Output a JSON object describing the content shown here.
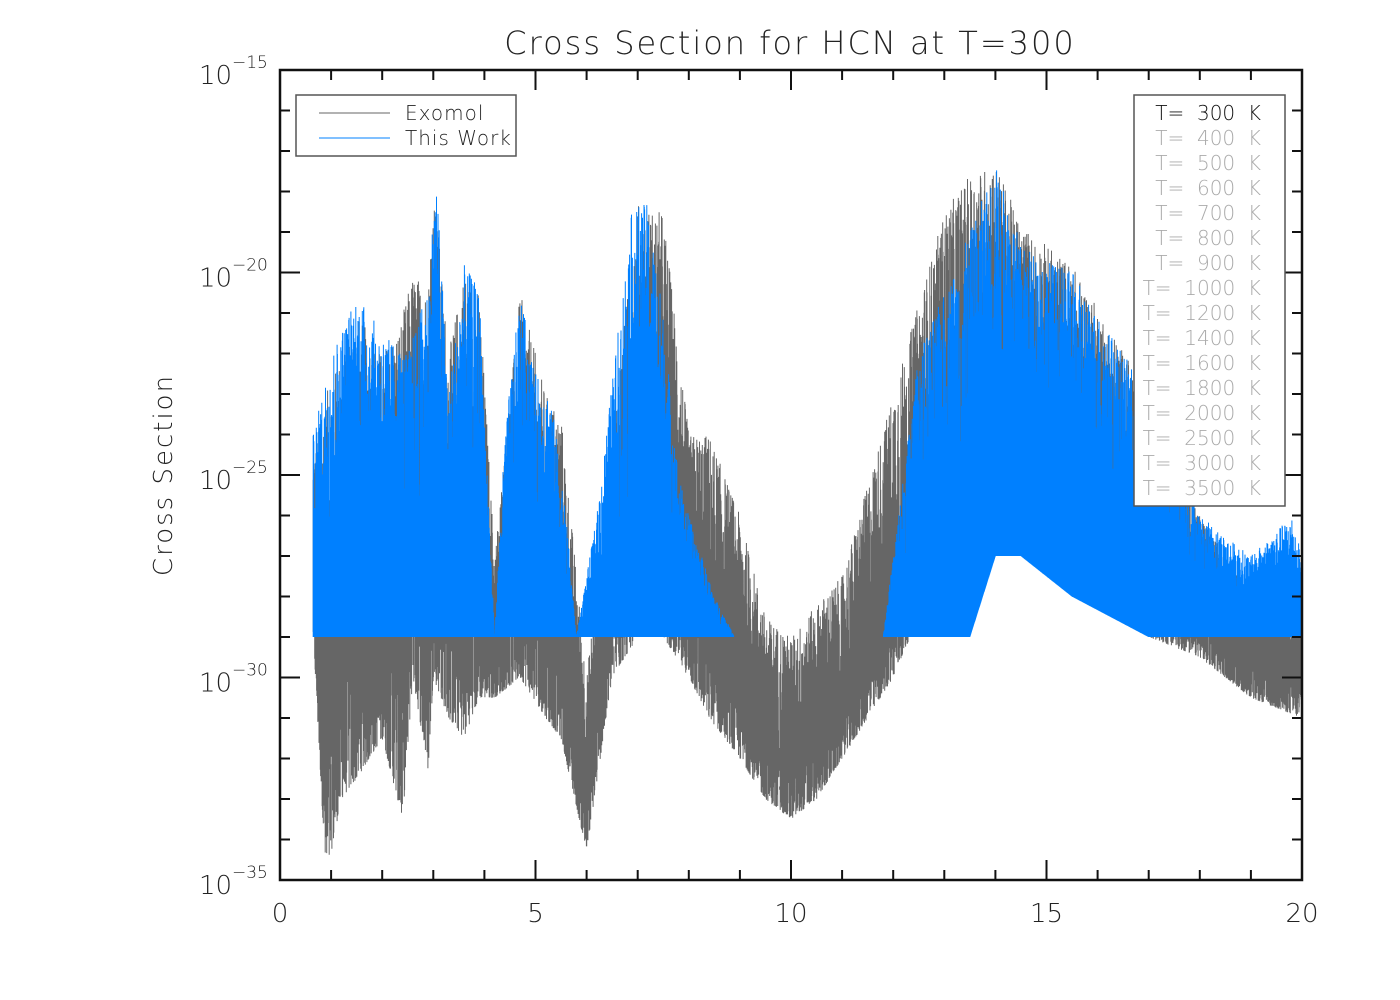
{
  "chart_data": {
    "type": "line",
    "title": "Cross Section for HCN at T=300",
    "xlabel": "",
    "ylabel": "Cross Section",
    "xlim": [
      0,
      20
    ],
    "ylim_log10": [
      -35,
      -15
    ],
    "yscale": "log",
    "xticks": [
      "0",
      "5",
      "10",
      "15",
      "20"
    ],
    "yticks": [
      {
        "base": "10",
        "exp": "−15",
        "value": -15
      },
      {
        "base": "10",
        "exp": "−20",
        "value": -20
      },
      {
        "base": "10",
        "exp": "−25",
        "value": -25
      },
      {
        "base": "10",
        "exp": "−30",
        "value": -30
      },
      {
        "base": "10",
        "exp": "−35",
        "value": -35
      }
    ],
    "legend": {
      "placement": "top-left",
      "entries": [
        "Exomol",
        "This Work"
      ]
    },
    "temperature_legend": {
      "placement": "top-right",
      "active_index": 0,
      "entries": [
        "T=  300  K",
        "T=  400  K",
        "T=  500  K",
        "T=  600  K",
        "T=  700  K",
        "T=  800  K",
        "T=  900  K",
        "T=  1000  K",
        "T=  1200  K",
        "T=  1400  K",
        "T=  1600  K",
        "T=  1800  K",
        "T=  2000  K",
        "T=  2500  K",
        "T=  3000  K",
        "T=  3500  K"
      ]
    },
    "series": [
      {
        "name": "Exomol",
        "color": "#666666",
        "envelope_note": "x, log10 upper, log10 lower",
        "envelope": [
          [
            0.65,
            -24.5,
            -29
          ],
          [
            0.9,
            -23,
            -35
          ],
          [
            1.2,
            -22,
            -33
          ],
          [
            1.5,
            -21,
            -32.5
          ],
          [
            2.0,
            -22,
            -31.5
          ],
          [
            2.4,
            -21,
            -33.5
          ],
          [
            2.6,
            -20,
            -30
          ],
          [
            2.9,
            -20.3,
            -32.3
          ],
          [
            3.0,
            -17.5,
            -30
          ],
          [
            3.3,
            -22,
            -31
          ],
          [
            3.6,
            -19.9,
            -31.5
          ],
          [
            3.9,
            -20.5,
            -30.5
          ],
          [
            4.2,
            -27,
            -30.5
          ],
          [
            4.7,
            -20.5,
            -30
          ],
          [
            5.2,
            -23,
            -31
          ],
          [
            5.5,
            -23.5,
            -31.5
          ],
          [
            6.0,
            -30,
            -34.3
          ],
          [
            6.5,
            -24,
            -30
          ],
          [
            7.0,
            -18.3,
            -29
          ],
          [
            7.5,
            -18.5,
            -29
          ],
          [
            8.0,
            -24,
            -30
          ],
          [
            8.4,
            -24,
            -31
          ],
          [
            9.0,
            -26,
            -32
          ],
          [
            9.5,
            -28.5,
            -33
          ],
          [
            10.0,
            -29,
            -33.5
          ],
          [
            10.5,
            -28.2,
            -33
          ],
          [
            11.0,
            -27.5,
            -32
          ],
          [
            12.0,
            -23,
            -30
          ],
          [
            13.0,
            -18.5,
            -27
          ],
          [
            13.5,
            -17.6,
            -26
          ],
          [
            14.0,
            -17.3,
            -25
          ],
          [
            14.5,
            -18.8,
            -27
          ],
          [
            15.5,
            -19.8,
            -28
          ],
          [
            17.0,
            -23,
            -29
          ],
          [
            18.0,
            -26,
            -29.5
          ],
          [
            19.0,
            -28,
            -30.5
          ],
          [
            20.0,
            -27.5,
            -31
          ]
        ]
      },
      {
        "name": "This Work",
        "color": "#0080ff",
        "envelope_note": "x, log10 upper, log10 lower",
        "envelope": [
          [
            0.65,
            -24,
            -29
          ],
          [
            1.0,
            -22,
            -29
          ],
          [
            1.5,
            -20.5,
            -29
          ],
          [
            2.0,
            -21.5,
            -29
          ],
          [
            2.5,
            -22,
            -29
          ],
          [
            2.9,
            -20.3,
            -29
          ],
          [
            3.05,
            -17.4,
            -29
          ],
          [
            3.3,
            -23,
            -29
          ],
          [
            3.6,
            -19.8,
            -29
          ],
          [
            3.9,
            -20.4,
            -29
          ],
          [
            4.2,
            -29,
            -29
          ],
          [
            4.4,
            -24,
            -29
          ],
          [
            4.7,
            -20.5,
            -29
          ],
          [
            5.0,
            -22.5,
            -29
          ],
          [
            5.3,
            -23,
            -29
          ],
          [
            5.6,
            -26,
            -29
          ],
          [
            5.8,
            -29,
            -29
          ],
          [
            6.2,
            -26,
            -29
          ],
          [
            6.9,
            -18.3,
            -29
          ],
          [
            7.2,
            -18.3,
            -29
          ],
          [
            7.5,
            -21,
            -29
          ],
          [
            7.8,
            -25,
            -29
          ],
          [
            8.0,
            -26,
            -29
          ],
          [
            8.5,
            -28,
            -29
          ],
          [
            8.9,
            -29,
            -29
          ],
          [
            11.8,
            -29,
            -29
          ],
          [
            12.5,
            -22,
            -29
          ],
          [
            13.5,
            -19,
            -29
          ],
          [
            14.0,
            -17.3,
            -27
          ],
          [
            14.5,
            -19.3,
            -27
          ],
          [
            15.5,
            -20,
            -28
          ],
          [
            17.0,
            -23,
            -29
          ],
          [
            18.0,
            -26,
            -29
          ],
          [
            19.0,
            -27,
            -29
          ],
          [
            19.8,
            -26,
            -29
          ],
          [
            20.0,
            -27,
            -29
          ]
        ]
      }
    ]
  }
}
